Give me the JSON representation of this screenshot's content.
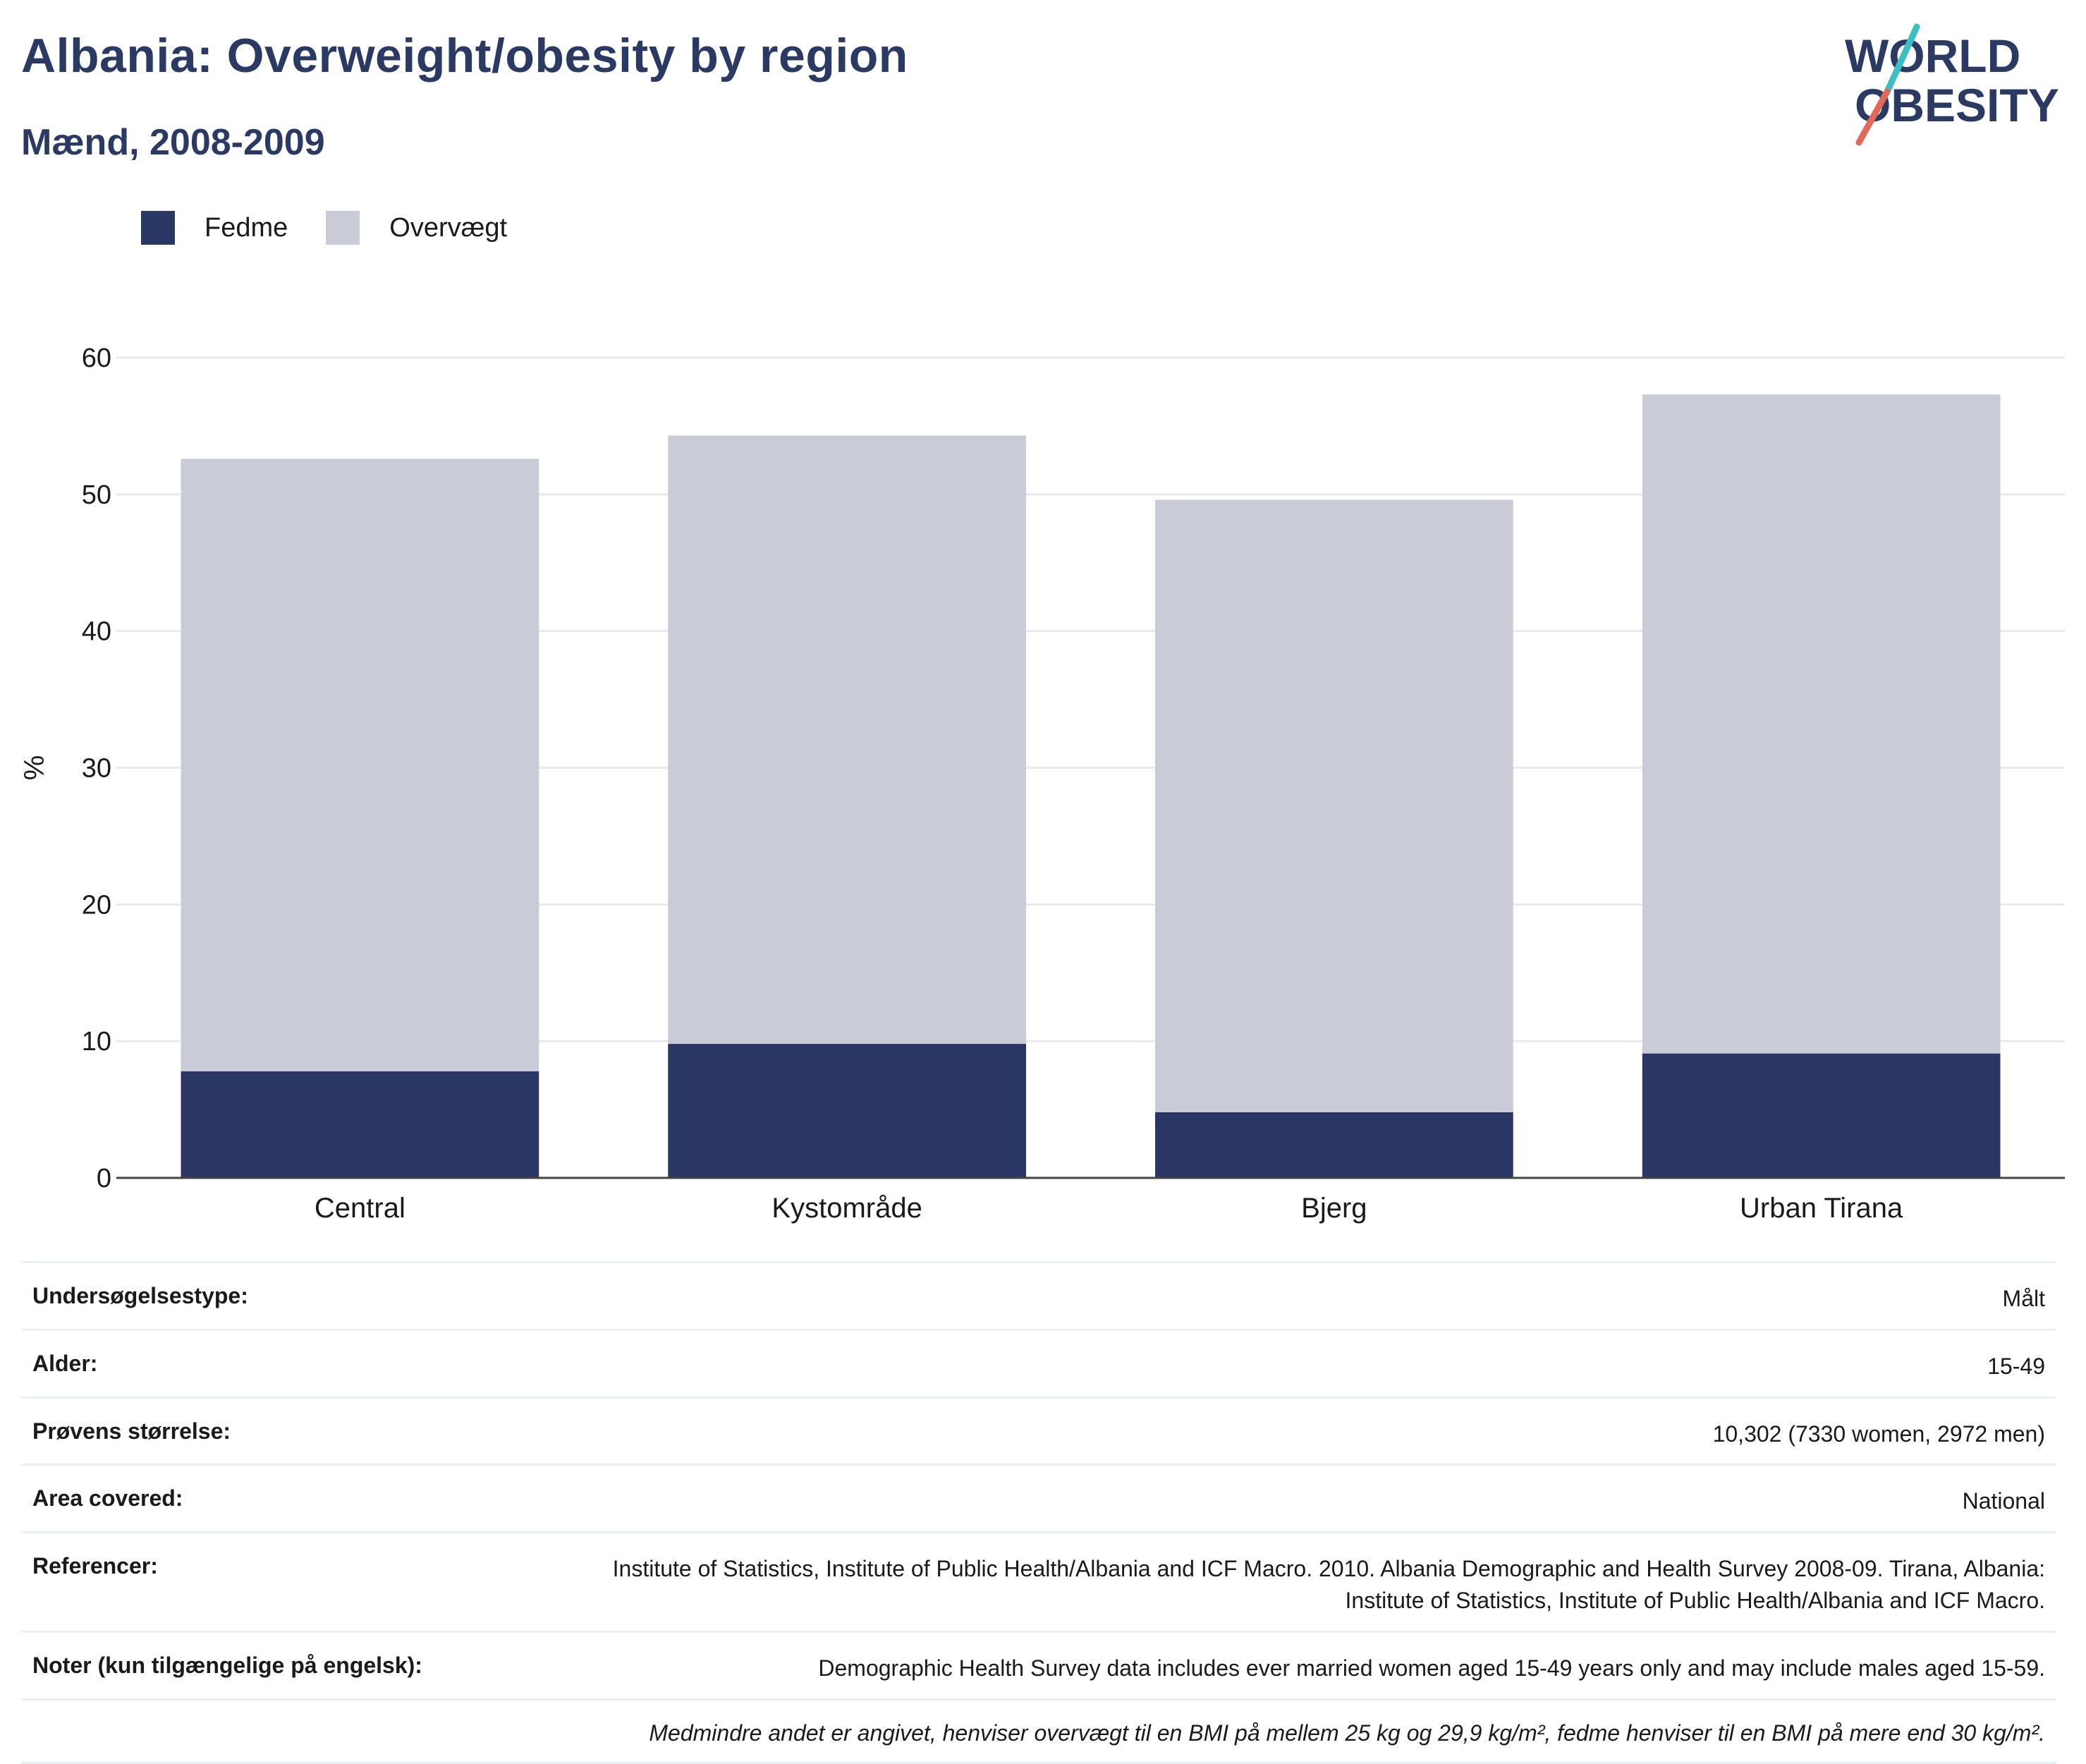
{
  "header": {
    "title": "Albania: Overweight/obesity by region",
    "subtitle": "Mænd, 2008-2009"
  },
  "logo": {
    "line1": "WORLD",
    "line2": "OBESITY"
  },
  "colors": {
    "obesity": "#2a3663",
    "overweight": "#c9cbd7",
    "title": "#2a3a63",
    "logo_teal": "#3bbfc4",
    "logo_red": "#e06a5a"
  },
  "legend": [
    {
      "label": "Fedme",
      "color": "#2a3663"
    },
    {
      "label": "Overvægt",
      "color": "#c9cbd7"
    }
  ],
  "chart_data": {
    "type": "bar",
    "stacked": true,
    "categories": [
      "Central",
      "Kystområde",
      "Bjerg",
      "Urban Tirana"
    ],
    "series": [
      {
        "name": "Fedme",
        "values": [
          7.8,
          9.8,
          4.8,
          9.1
        ]
      },
      {
        "name": "Overvægt",
        "values": [
          44.8,
          44.5,
          44.8,
          48.2
        ]
      }
    ],
    "ylabel": "%",
    "ylim": [
      0,
      60
    ],
    "yticks": [
      0,
      10,
      20,
      30,
      40,
      50,
      60
    ],
    "grid": true,
    "legend_position": "top-left"
  },
  "meta": {
    "rows": [
      {
        "key": "Undersøgelsestype:",
        "value": "Målt"
      },
      {
        "key": "Alder:",
        "value": "15-49"
      },
      {
        "key": "Prøvens størrelse:",
        "value": "10,302 (7330 women, 2972 men)"
      },
      {
        "key": "Area covered:",
        "value": "National"
      },
      {
        "key": "Referencer:",
        "value": "Institute of Statistics, Institute of Public Health/Albania and ICF Macro. 2010. Albania Demographic and Health Survey 2008-09. Tirana, Albania: Institute of Statistics, Institute of Public Health/Albania and ICF Macro."
      },
      {
        "key": "Noter (kun tilgængelige på engelsk):",
        "value": "Demographic Health Survey data includes ever married women aged 15-49 years only and may include males aged 15-59."
      }
    ],
    "footnote": "Medmindre andet er angivet, henviser overvægt til en BMI på mellem 25 kg og 29,9 kg/m², fedme henviser til en BMI på mere end 30 kg/m²."
  }
}
